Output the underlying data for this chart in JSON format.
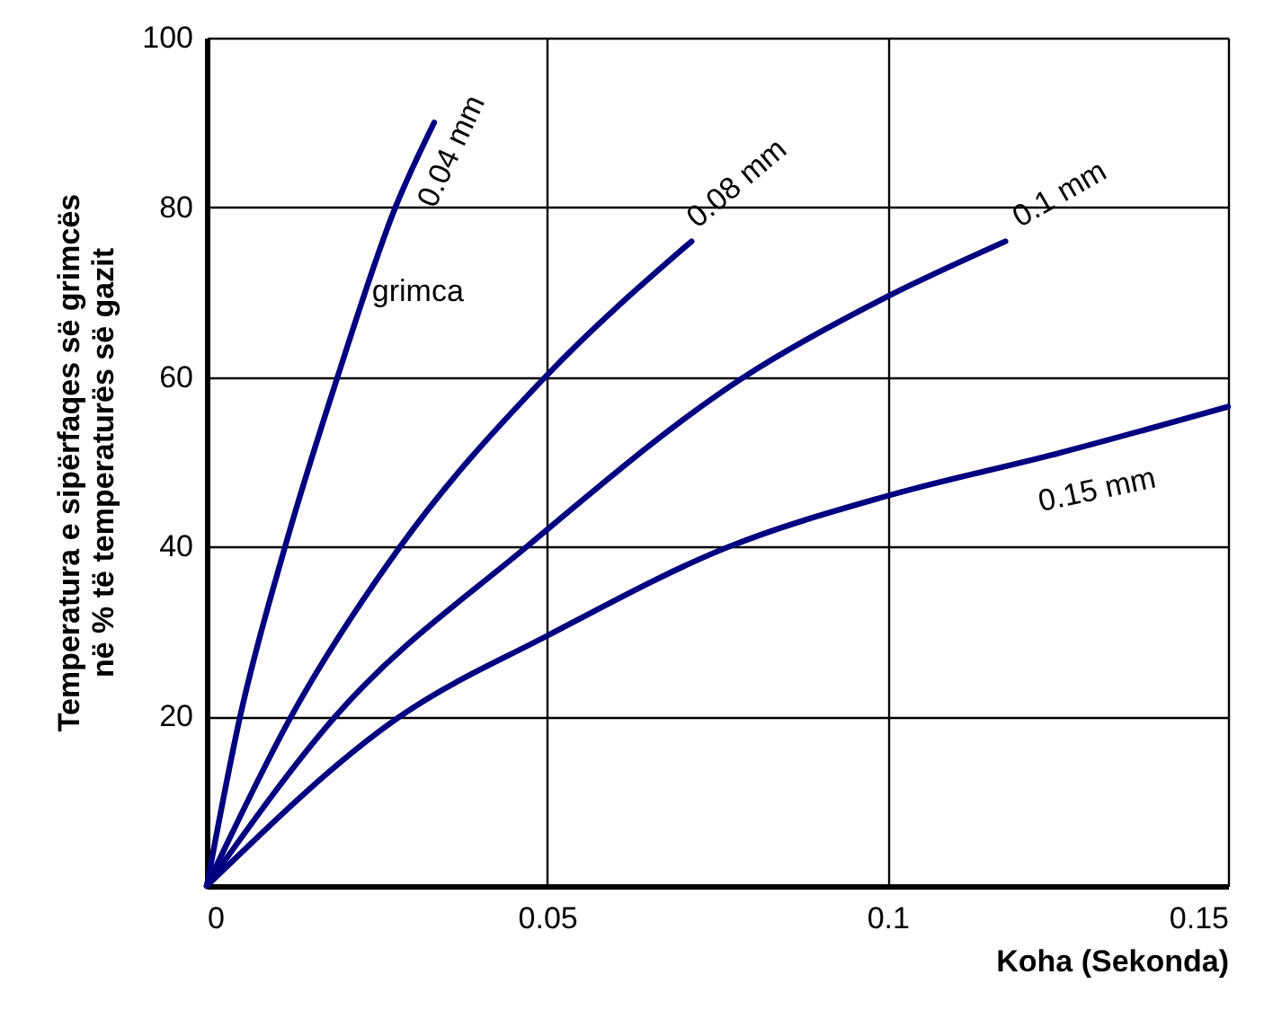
{
  "chart_data": {
    "type": "line",
    "xlabel": "Koha (Sekonda)",
    "ylabel": "Temperatura e sipërfaqes së grimcës\nnë % të temperaturës së gazit",
    "xlim": [
      0,
      0.15
    ],
    "xticks": [
      0,
      0.05,
      0.1,
      0.15
    ],
    "ylim": [
      0,
      100
    ],
    "yticks": [
      20,
      40,
      60,
      80,
      100
    ],
    "grid": true,
    "legend": false,
    "marker": "none",
    "line_style": "solid",
    "annotations": [
      "grimca"
    ],
    "series": [
      {
        "name": "0.04 mm",
        "color": "#000080",
        "x": [
          0,
          0.0049,
          0.0115,
          0.0192,
          0.0277,
          0.0334
        ],
        "values": [
          0,
          20,
          40,
          60,
          80,
          90
        ]
      },
      {
        "name": "0.08 mm",
        "color": "#000080",
        "x": [
          0,
          0.0124,
          0.0284,
          0.0497,
          0.0712
        ],
        "values": [
          0,
          20,
          40,
          60,
          76
        ]
      },
      {
        "name": "0.1 mm",
        "color": "#000080",
        "x": [
          0,
          0.0189,
          0.047,
          0.0789,
          0.1,
          0.1173
        ],
        "values": [
          0,
          20,
          40,
          60,
          69.5,
          76
        ]
      },
      {
        "name": "0.15 mm",
        "color": "#000080",
        "x": [
          0,
          0.0284,
          0.05,
          0.0767,
          0.1,
          0.125,
          0.15
        ],
        "values": [
          0,
          20,
          29.5,
          40,
          46,
          51,
          56.5
        ]
      }
    ]
  }
}
